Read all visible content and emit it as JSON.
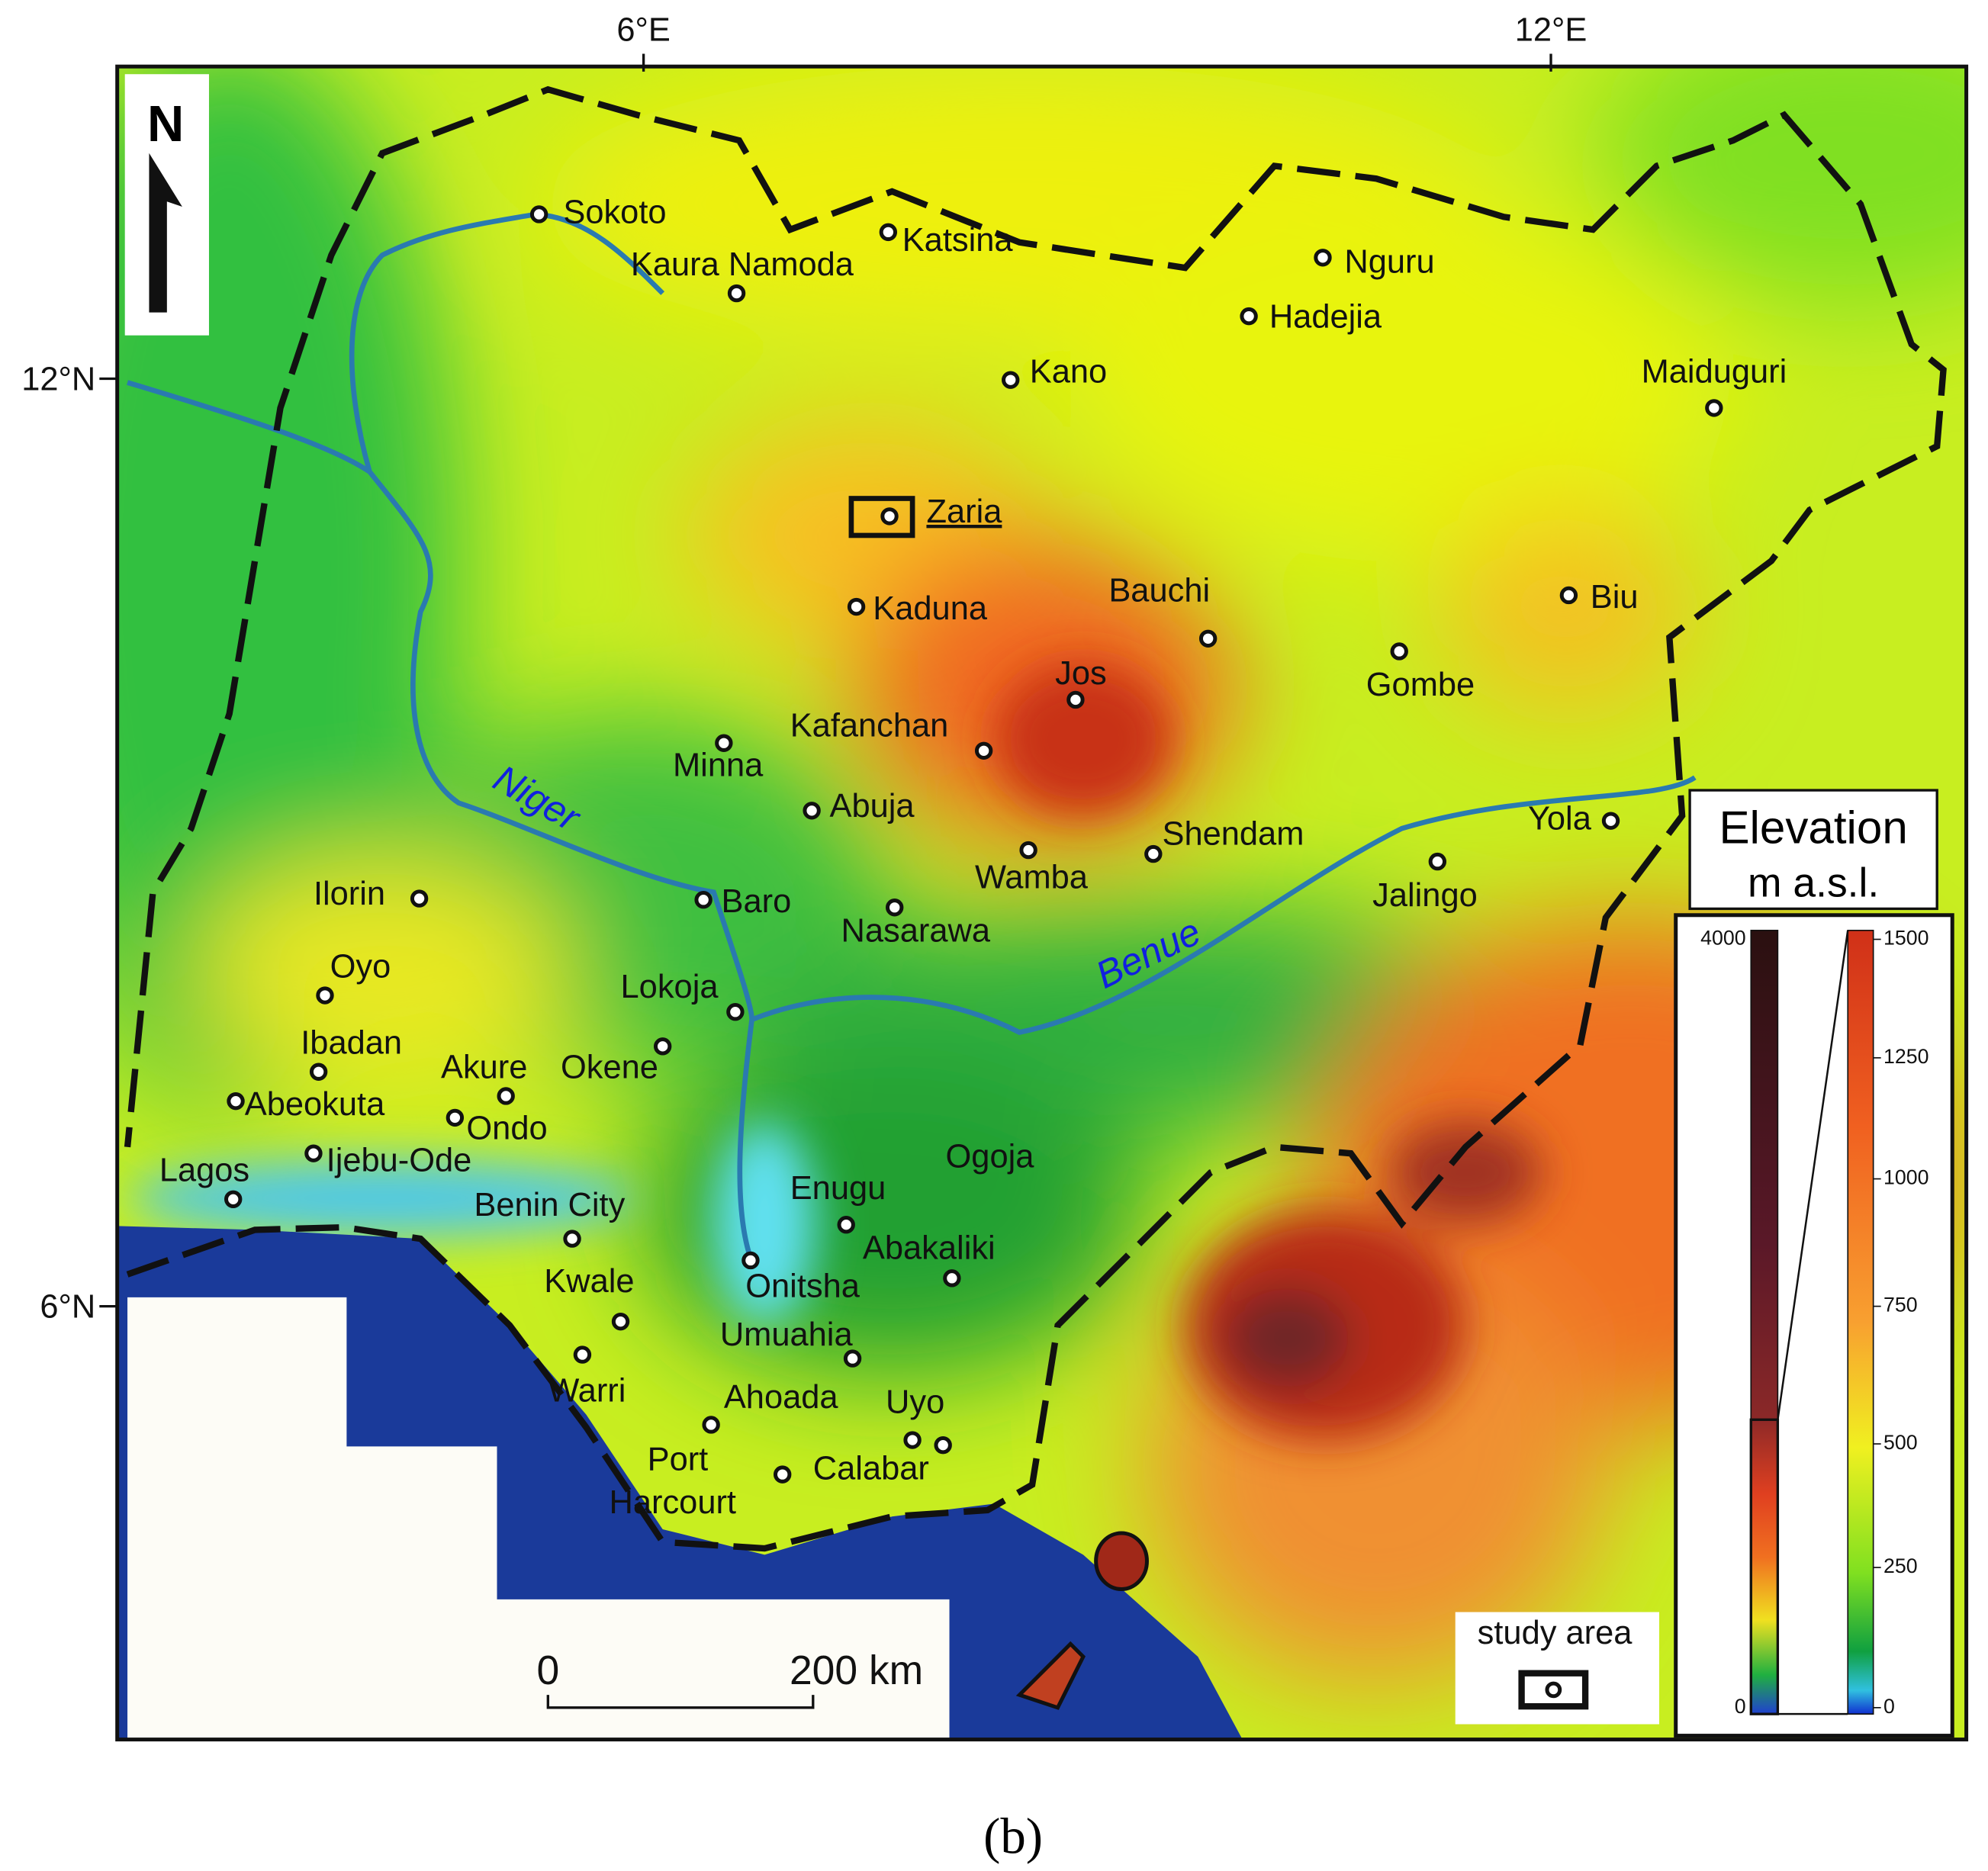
{
  "axes": {
    "top": [
      "6°E",
      "12°E"
    ],
    "left": [
      "12°N",
      "6°N"
    ]
  },
  "north": "N",
  "cities": [
    "Sokoto",
    "Katsina",
    "Kaura Namoda",
    "Nguru",
    "Hadejia",
    "Kano",
    "Maiduguri",
    "Zaria",
    "Kaduna",
    "Bauchi",
    "Biu",
    "Gombe",
    "Jos",
    "Kafanchan",
    "Minna",
    "Abuja",
    "Shendam",
    "Wamba",
    "Yola",
    "Jalingo",
    "Ilorin",
    "Baro",
    "Nasarawa",
    "Oyo",
    "Lokoja",
    "Ibadan",
    "Okene",
    "Akure",
    "Abeokuta",
    "Ondo",
    "Ijebu-Ode",
    "Lagos",
    "Benin City",
    "Enugu",
    "Ogoja",
    "Abakaliki",
    "Onitsha",
    "Kwale",
    "Warri",
    "Umuahia",
    "Ahoada",
    "Uyo",
    "Calabar",
    [
      "Port",
      "Harcourt"
    ]
  ],
  "rivers": [
    "Niger",
    "Benue"
  ],
  "scale_bar": {
    "start": "0",
    "end": "200 km"
  },
  "study_area": "study area",
  "legend": {
    "title": "Elevation",
    "unit": "m a.s.l.",
    "left_ticks": [
      "4000",
      "0"
    ],
    "right_ticks": [
      "1500",
      "1250",
      "1000",
      "750",
      "500",
      "250",
      "0"
    ]
  },
  "caption": "(b)"
}
